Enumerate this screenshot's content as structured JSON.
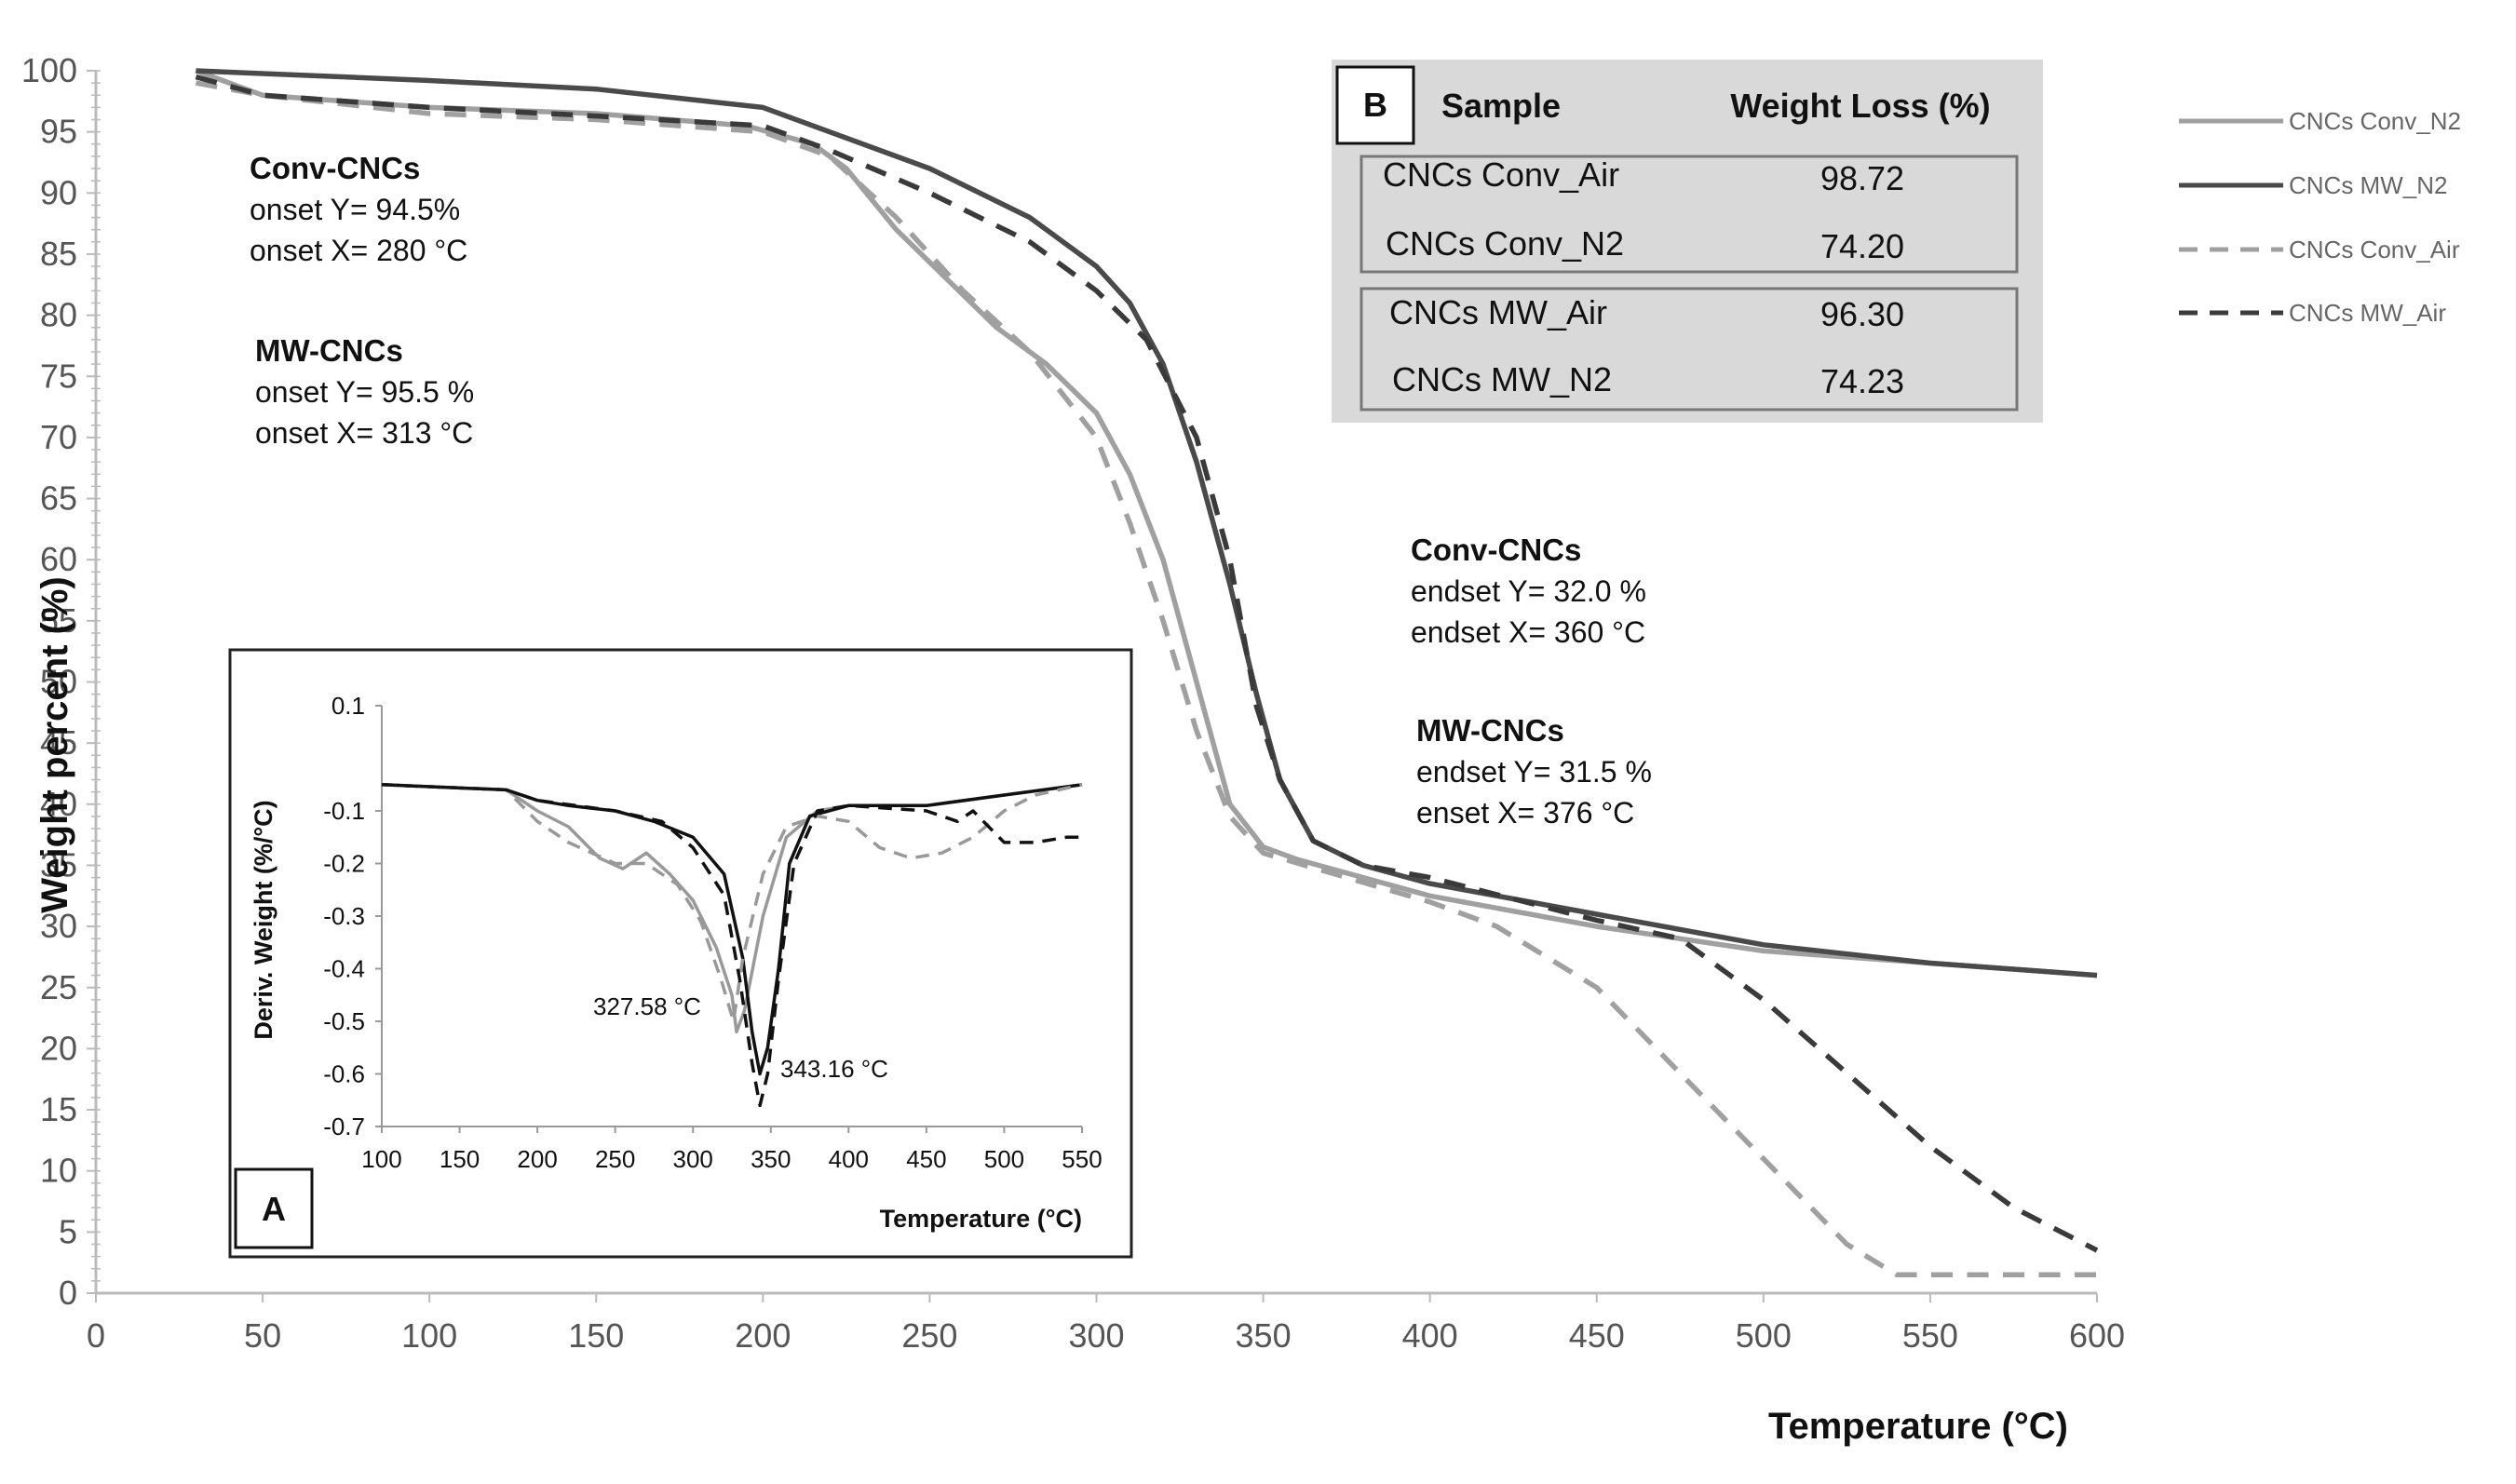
{
  "chart_data": [
    {
      "type": "line",
      "title": "",
      "xlabel": "Temperature (°C)",
      "ylabel": "Weight percent (%)",
      "xlim": [
        0,
        600
      ],
      "ylim": [
        0,
        100
      ],
      "x_ticks": [
        0,
        50,
        100,
        150,
        200,
        250,
        300,
        350,
        400,
        450,
        500,
        550,
        600
      ],
      "y_ticks": [
        0,
        5,
        10,
        15,
        20,
        25,
        30,
        35,
        40,
        45,
        50,
        55,
        60,
        65,
        70,
        75,
        80,
        85,
        90,
        95,
        100
      ],
      "grid": false,
      "legend": "right",
      "series": [
        {
          "name": "CNCs Conv_N2",
          "color": "#a0a0a0",
          "dash": "solid",
          "points": [
            [
              30,
              100
            ],
            [
              50,
              98
            ],
            [
              100,
              97
            ],
            [
              150,
              96.5
            ],
            [
              195,
              95.5
            ],
            [
              215,
              94
            ],
            [
              225,
              92
            ],
            [
              240,
              87
            ],
            [
              255,
              83
            ],
            [
              270,
              79
            ],
            [
              285,
              76
            ],
            [
              300,
              72
            ],
            [
              310,
              67
            ],
            [
              320,
              60
            ],
            [
              330,
              50
            ],
            [
              340,
              40
            ],
            [
              350,
              36.5
            ],
            [
              360,
              35.5
            ],
            [
              380,
              34
            ],
            [
              400,
              32.5
            ],
            [
              450,
              30
            ],
            [
              500,
              28
            ],
            [
              550,
              27
            ],
            [
              600,
              26
            ]
          ]
        },
        {
          "name": "CNCs MW_N2",
          "color": "#4a4a4a",
          "dash": "solid",
          "points": [
            [
              30,
              100
            ],
            [
              100,
              99.2
            ],
            [
              150,
              98.5
            ],
            [
              200,
              97
            ],
            [
              220,
              95
            ],
            [
              250,
              92
            ],
            [
              280,
              88
            ],
            [
              300,
              84
            ],
            [
              310,
              81
            ],
            [
              320,
              76
            ],
            [
              330,
              68
            ],
            [
              340,
              58
            ],
            [
              348,
              49
            ],
            [
              355,
              42
            ],
            [
              365,
              37
            ],
            [
              380,
              35
            ],
            [
              400,
              33.5
            ],
            [
              450,
              31
            ],
            [
              500,
              28.5
            ],
            [
              550,
              27
            ],
            [
              600,
              26
            ]
          ]
        },
        {
          "name": "CNCs Conv_Air",
          "color": "#a0a0a0",
          "dash": "dashed",
          "points": [
            [
              30,
              99
            ],
            [
              50,
              98
            ],
            [
              100,
              96.5
            ],
            [
              150,
              96
            ],
            [
              200,
              95
            ],
            [
              220,
              93
            ],
            [
              240,
              88
            ],
            [
              260,
              82
            ],
            [
              280,
              77
            ],
            [
              300,
              70
            ],
            [
              310,
              63
            ],
            [
              320,
              55
            ],
            [
              330,
              46
            ],
            [
              340,
              39
            ],
            [
              350,
              36
            ],
            [
              375,
              34
            ],
            [
              400,
              32
            ],
            [
              420,
              30
            ],
            [
              450,
              25
            ],
            [
              475,
              18
            ],
            [
              500,
              11
            ],
            [
              525,
              4
            ],
            [
              540,
              1.5
            ],
            [
              600,
              1.5
            ]
          ]
        },
        {
          "name": "CNCs MW_Air",
          "color": "#3a3a3a",
          "dash": "dashed",
          "points": [
            [
              30,
              99.5
            ],
            [
              50,
              98
            ],
            [
              100,
              97
            ],
            [
              150,
              96.3
            ],
            [
              200,
              95.5
            ],
            [
              220,
              93.5
            ],
            [
              250,
              90
            ],
            [
              280,
              86
            ],
            [
              300,
              82
            ],
            [
              315,
              78
            ],
            [
              330,
              70
            ],
            [
              340,
              60
            ],
            [
              348,
              48
            ],
            [
              355,
              42
            ],
            [
              365,
              37
            ],
            [
              380,
              35
            ],
            [
              400,
              34
            ],
            [
              450,
              30.5
            ],
            [
              475,
              29
            ],
            [
              500,
              24
            ],
            [
              525,
              18
            ],
            [
              550,
              12
            ],
            [
              575,
              7
            ],
            [
              600,
              3.5
            ]
          ]
        }
      ]
    },
    {
      "type": "line",
      "title": "",
      "panel": "A",
      "xlabel": "Temperature (°C)",
      "ylabel": "Deriv. Weight (%/°C)",
      "xlim": [
        100,
        550
      ],
      "ylim": [
        -0.7,
        0.1
      ],
      "x_ticks": [
        100,
        150,
        200,
        250,
        300,
        350,
        400,
        450,
        500,
        550
      ],
      "y_ticks": [
        0.1,
        -0.1,
        -0.2,
        -0.3,
        -0.4,
        -0.5,
        -0.6,
        -0.7
      ],
      "y_tick_labels": [
        "0.1",
        "-0.1",
        "-0.2",
        "-0.3",
        "-0.4",
        "-0.5",
        "-0.6",
        "-0.7"
      ],
      "annotations": [
        {
          "text": "327.58 °C",
          "x": 327.58,
          "y": -0.52
        },
        {
          "text": "343.16 °C",
          "x": 343.16,
          "y": -0.6
        }
      ],
      "series": [
        {
          "name": "CNCs Conv_N2",
          "color": "#999999",
          "dash": "solid",
          "points": [
            [
              100,
              -0.05
            ],
            [
              180,
              -0.06
            ],
            [
              200,
              -0.1
            ],
            [
              220,
              -0.13
            ],
            [
              240,
              -0.19
            ],
            [
              255,
              -0.21
            ],
            [
              270,
              -0.18
            ],
            [
              285,
              -0.22
            ],
            [
              300,
              -0.27
            ],
            [
              315,
              -0.36
            ],
            [
              325,
              -0.45
            ],
            [
              328,
              -0.52
            ],
            [
              333,
              -0.48
            ],
            [
              345,
              -0.3
            ],
            [
              360,
              -0.15
            ],
            [
              380,
              -0.1
            ],
            [
              400,
              -0.09
            ],
            [
              450,
              -0.09
            ],
            [
              500,
              -0.07
            ],
            [
              550,
              -0.05
            ]
          ]
        },
        {
          "name": "CNCs MW_N2",
          "color": "#111111",
          "dash": "solid",
          "points": [
            [
              100,
              -0.05
            ],
            [
              180,
              -0.06
            ],
            [
              200,
              -0.08
            ],
            [
              220,
              -0.09
            ],
            [
              250,
              -0.1
            ],
            [
              275,
              -0.12
            ],
            [
              300,
              -0.15
            ],
            [
              320,
              -0.22
            ],
            [
              332,
              -0.38
            ],
            [
              338,
              -0.52
            ],
            [
              343,
              -0.6
            ],
            [
              348,
              -0.55
            ],
            [
              355,
              -0.4
            ],
            [
              362,
              -0.2
            ],
            [
              375,
              -0.11
            ],
            [
              400,
              -0.09
            ],
            [
              450,
              -0.09
            ],
            [
              500,
              -0.07
            ],
            [
              550,
              -0.05
            ]
          ]
        },
        {
          "name": "CNCs Conv_Air",
          "color": "#999999",
          "dash": "dashed",
          "points": [
            [
              100,
              -0.05
            ],
            [
              180,
              -0.06
            ],
            [
              200,
              -0.12
            ],
            [
              220,
              -0.16
            ],
            [
              250,
              -0.2
            ],
            [
              270,
              -0.2
            ],
            [
              290,
              -0.24
            ],
            [
              305,
              -0.31
            ],
            [
              318,
              -0.42
            ],
            [
              326,
              -0.5
            ],
            [
              332,
              -0.38
            ],
            [
              345,
              -0.22
            ],
            [
              360,
              -0.13
            ],
            [
              380,
              -0.11
            ],
            [
              400,
              -0.12
            ],
            [
              420,
              -0.17
            ],
            [
              440,
              -0.19
            ],
            [
              460,
              -0.18
            ],
            [
              480,
              -0.15
            ],
            [
              500,
              -0.1
            ],
            [
              520,
              -0.07
            ],
            [
              550,
              -0.05
            ]
          ]
        },
        {
          "name": "CNCs MW_Air",
          "color": "#111111",
          "dash": "dashed",
          "points": [
            [
              100,
              -0.05
            ],
            [
              180,
              -0.06
            ],
            [
              200,
              -0.08
            ],
            [
              250,
              -0.1
            ],
            [
              280,
              -0.12
            ],
            [
              300,
              -0.17
            ],
            [
              320,
              -0.26
            ],
            [
              330,
              -0.42
            ],
            [
              338,
              -0.58
            ],
            [
              343,
              -0.66
            ],
            [
              348,
              -0.6
            ],
            [
              355,
              -0.42
            ],
            [
              365,
              -0.2
            ],
            [
              380,
              -0.1
            ],
            [
              400,
              -0.09
            ],
            [
              450,
              -0.1
            ],
            [
              470,
              -0.12
            ],
            [
              480,
              -0.1
            ],
            [
              500,
              -0.16
            ],
            [
              520,
              -0.16
            ],
            [
              540,
              -0.15
            ],
            [
              550,
              -0.15
            ]
          ]
        }
      ]
    }
  ],
  "main_annotations": {
    "conv_onset": {
      "title": "Conv-CNCs",
      "line1": "onset Y= 94.5%",
      "line2": "onset X= 280 °C"
    },
    "mw_onset": {
      "title": "MW-CNCs",
      "line1": "onset Y= 95.5 %",
      "line2": "onset X= 313 °C"
    },
    "conv_endset": {
      "title": "Conv-CNCs",
      "line1": "endset Y= 32.0 %",
      "line2": "endset X= 360 °C"
    },
    "mw_endset": {
      "title": "MW-CNCs",
      "line1": "endset Y= 31.5 %",
      "line2": "enset X= 376 °C"
    }
  },
  "inset_a": {
    "label": "A"
  },
  "table_b": {
    "label": "B",
    "col_sample": "Sample",
    "col_loss": "Weight Loss (%)",
    "rows": [
      {
        "sample": "CNCs Conv_Air",
        "loss": "98.72"
      },
      {
        "sample": "CNCs Conv_N2",
        "loss": "74.20"
      },
      {
        "sample": "CNCs MW_Air",
        "loss": "96.30"
      },
      {
        "sample": "CNCs MW_N2",
        "loss": "74.23"
      }
    ]
  },
  "legend": [
    {
      "label": "CNCs Conv_N2",
      "color": "#a0a0a0",
      "dash": "solid"
    },
    {
      "label": "CNCs MW_N2",
      "color": "#4a4a4a",
      "dash": "solid"
    },
    {
      "label": "CNCs Conv_Air",
      "color": "#a0a0a0",
      "dash": "dashed"
    },
    {
      "label": "CNCs MW_Air",
      "color": "#3a3a3a",
      "dash": "dashed"
    }
  ]
}
